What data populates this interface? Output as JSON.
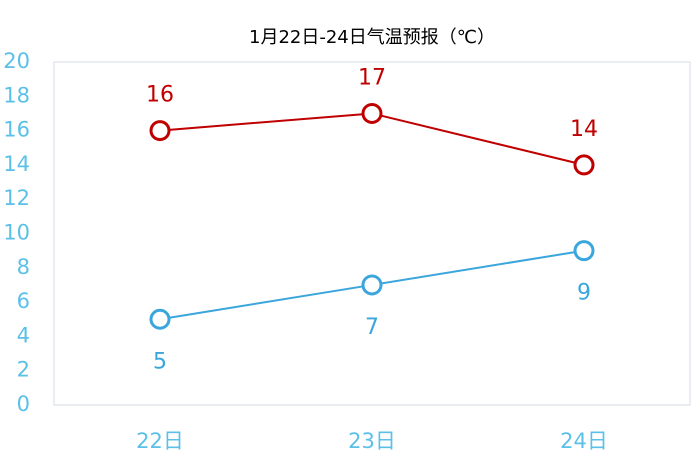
{
  "chart_data": {
    "type": "line",
    "title": "1月22日-24日气温预报（℃）",
    "categories": [
      "22日",
      "23日",
      "24日"
    ],
    "series": [
      {
        "color": "#c00000",
        "values": [
          16,
          17,
          14
        ]
      },
      {
        "color": "#3aa6dc",
        "values": [
          5,
          7,
          9
        ]
      }
    ],
    "ylim": [
      0,
      20
    ],
    "yticks": [
      0,
      2,
      4,
      6,
      8,
      10,
      12,
      14,
      16,
      18,
      20
    ],
    "grid": false
  }
}
